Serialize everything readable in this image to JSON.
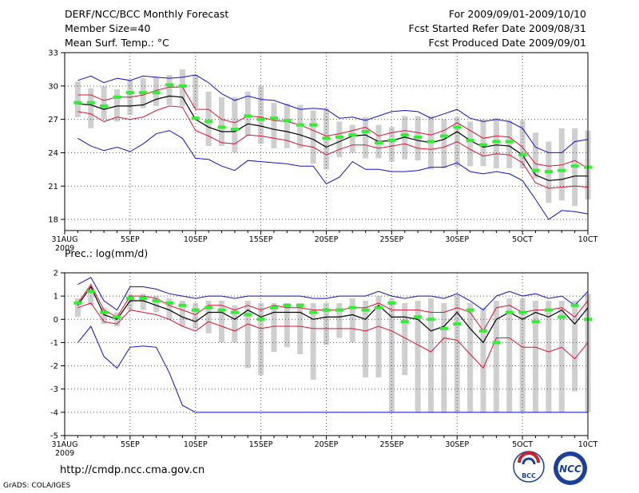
{
  "header": {
    "title": "DERF/NCC/BCC Monthly Forecast",
    "member_size": "Member Size=40",
    "variable_temp": "Mean Surf. Temp.: °C",
    "forecast_for": "For 2009/09/01-2009/10/10",
    "fcst_started": "Fcst Started Refer Date 2009/08/31",
    "fcst_produced": "Fcst Produced Date 2009/09/01"
  },
  "footer": {
    "url": "http://cmdp.ncc.cma.gov.cn",
    "credit": "GrADS: COLA/IGES",
    "logo_bcc_text": "BCC",
    "logo_ncc_text": "NCC"
  },
  "colors": {
    "envelope": "#1010d0",
    "spread": "#e01030",
    "mean": "#000000",
    "median": "#33ee33",
    "box": "#cfcfcf",
    "grid": "#555555"
  },
  "chart_data": [
    {
      "type": "line",
      "name": "temperature",
      "title": "Mean Surf. Temp.: °C",
      "x_tick_labels": [
        "31AUG",
        "5SEP",
        "10SEP",
        "15SEP",
        "20SEP",
        "25SEP",
        "30SEP",
        "5OCT",
        "10CT"
      ],
      "x_tick_days": [
        0,
        5,
        10,
        15,
        20,
        25,
        30,
        35,
        40
      ],
      "x_year_label": "2009",
      "ylim": [
        17,
        33
      ],
      "y_ticks": [
        18,
        21,
        24,
        27,
        30,
        33
      ],
      "grid": true,
      "days": [
        1,
        2,
        3,
        4,
        5,
        6,
        7,
        8,
        9,
        10,
        11,
        12,
        13,
        14,
        15,
        16,
        17,
        18,
        19,
        20,
        21,
        22,
        23,
        24,
        25,
        26,
        27,
        28,
        29,
        30,
        31,
        32,
        33,
        34,
        35,
        36,
        37,
        38,
        39,
        40
      ],
      "box_low": [
        27.2,
        26.2,
        27.0,
        26.8,
        27.4,
        28.0,
        28.2,
        28.3,
        28.2,
        28.0,
        24.6,
        24.6,
        24.0,
        25.5,
        24.8,
        24.4,
        24.4,
        24.4,
        23.0,
        22.5,
        23.6,
        24.0,
        23.5,
        23.5,
        23.2,
        23.4,
        23.3,
        22.5,
        22.6,
        22.7,
        22.8,
        22.8,
        22.6,
        22.6,
        22.6,
        21.7,
        19.5,
        19.7,
        19.2,
        19.8
      ],
      "box_high": [
        30.4,
        29.8,
        30.0,
        29.7,
        30.5,
        30.7,
        30.8,
        31.0,
        31.5,
        31.0,
        29.5,
        29.0,
        29.0,
        29.5,
        30.0,
        28.5,
        28.4,
        28.3,
        27.8,
        28.0,
        26.8,
        26.5,
        27.2,
        26.5,
        26.3,
        27.3,
        27.3,
        27.3,
        27.0,
        27.2,
        26.8,
        27.0,
        27.1,
        26.9,
        26.9,
        25.8,
        25.0,
        26.2,
        26.2,
        26.0
      ],
      "env_high": [
        30.5,
        30.9,
        30.3,
        30.7,
        30.5,
        30.9,
        30.8,
        30.7,
        30.8,
        31.0,
        30.3,
        29.3,
        28.7,
        29.1,
        28.8,
        28.7,
        28.3,
        27.9,
        28.0,
        27.9,
        27.1,
        27.2,
        26.9,
        27.3,
        27.7,
        27.8,
        27.7,
        27.1,
        27.5,
        27.9,
        27.1,
        26.8,
        27.0,
        26.8,
        26.2,
        24.5,
        24.0,
        24.0,
        25.0,
        25.2
      ],
      "env_low": [
        25.3,
        24.6,
        24.2,
        24.5,
        24.1,
        24.8,
        25.7,
        26.0,
        25.3,
        23.5,
        23.4,
        22.8,
        22.4,
        23.3,
        23.2,
        23.1,
        23.0,
        22.8,
        22.8,
        21.2,
        21.8,
        23.2,
        22.5,
        22.5,
        22.3,
        22.3,
        22.4,
        22.7,
        22.7,
        23.1,
        22.3,
        22.1,
        22.3,
        22.1,
        21.5,
        19.8,
        18.0,
        18.8,
        18.7,
        18.5
      ],
      "spread_high": [
        29.2,
        29.2,
        28.7,
        29.0,
        29.0,
        29.2,
        29.6,
        29.9,
        29.9,
        27.9,
        27.9,
        27.0,
        26.7,
        27.3,
        27.2,
        26.9,
        26.8,
        26.5,
        26.0,
        25.5,
        25.7,
        26.0,
        26.3,
        25.5,
        25.8,
        26.0,
        25.8,
        25.6,
        26.0,
        26.7,
        26.0,
        25.3,
        25.5,
        25.4,
        24.5,
        23.0,
        22.8,
        22.9,
        23.3,
        22.6
      ],
      "spread_low": [
        27.7,
        27.5,
        26.8,
        27.2,
        27.0,
        27.2,
        27.8,
        28.2,
        28.1,
        26.0,
        25.5,
        24.9,
        24.8,
        25.6,
        25.5,
        25.3,
        25.1,
        24.7,
        24.5,
        23.8,
        24.3,
        24.7,
        24.7,
        24.4,
        24.6,
        24.8,
        24.4,
        24.3,
        24.5,
        25.0,
        24.3,
        23.7,
        23.9,
        23.8,
        23.1,
        21.3,
        20.8,
        20.9,
        21.0,
        20.9
      ],
      "mean": [
        28.4,
        28.3,
        27.9,
        28.2,
        28.2,
        28.3,
        28.8,
        29.1,
        29.0,
        27.0,
        26.3,
        25.9,
        25.9,
        26.6,
        26.4,
        26.1,
        25.9,
        25.6,
        25.2,
        24.5,
        25.0,
        25.5,
        25.6,
        25.0,
        25.1,
        25.4,
        25.1,
        24.9,
        25.2,
        25.9,
        25.1,
        24.5,
        24.7,
        24.6,
        23.8,
        22.0,
        21.5,
        21.6,
        21.9,
        21.9
      ],
      "median": [
        28.5,
        28.5,
        28.2,
        29.0,
        29.4,
        29.4,
        29.4,
        30.1,
        30.0,
        27.1,
        26.8,
        26.3,
        26.1,
        27.3,
        27.0,
        27.1,
        26.9,
        26.5,
        26.5,
        25.3,
        25.4,
        25.6,
        25.9,
        24.9,
        25.1,
        25.6,
        25.4,
        25.0,
        25.5,
        26.3,
        25.1,
        24.7,
        25.0,
        25.0,
        23.8,
        22.4,
        22.3,
        22.4,
        22.8,
        22.7
      ]
    },
    {
      "type": "line",
      "name": "precipitation",
      "title": "Prec.: log(mm/d)",
      "x_tick_labels": [
        "31AUG",
        "5SEP",
        "10SEP",
        "15SEP",
        "20SEP",
        "25SEP",
        "30SEP",
        "5OCT",
        "10CT"
      ],
      "x_tick_days": [
        0,
        5,
        10,
        15,
        20,
        25,
        30,
        35,
        40
      ],
      "x_year_label": "2009",
      "ylim": [
        -5,
        2
      ],
      "y_ticks": [
        -5,
        -4,
        -3,
        -2,
        -1,
        0,
        1,
        2
      ],
      "grid": true,
      "days": [
        1,
        2,
        3,
        4,
        5,
        6,
        7,
        8,
        9,
        10,
        11,
        12,
        13,
        14,
        15,
        16,
        17,
        18,
        19,
        20,
        21,
        22,
        23,
        24,
        25,
        26,
        27,
        28,
        29,
        30,
        31,
        32,
        33,
        34,
        35,
        36,
        37,
        38,
        39,
        40
      ],
      "box_low": [
        0.1,
        0.6,
        -0.2,
        -0.3,
        0.4,
        0.4,
        0.3,
        0.0,
        -0.3,
        -0.4,
        -0.6,
        -1.0,
        -1.0,
        -2.1,
        -2.4,
        -1.4,
        -1.2,
        -1.5,
        -2.6,
        -1.1,
        -0.8,
        -1.0,
        -2.5,
        -2.5,
        -4.0,
        -2.4,
        -4.0,
        -4.0,
        -4.0,
        -4.0,
        -4.0,
        -4.0,
        -4.0,
        -4.0,
        -4.0,
        -4.0,
        -4.0,
        -4.0,
        -3.1,
        -4.0
      ],
      "box_high": [
        0.9,
        1.3,
        0.5,
        0.3,
        1.1,
        1.1,
        1.0,
        0.9,
        0.8,
        0.7,
        0.8,
        0.8,
        0.6,
        0.8,
        0.7,
        0.7,
        0.7,
        0.7,
        0.7,
        0.7,
        0.7,
        0.9,
        0.8,
        1.0,
        0.9,
        0.7,
        0.8,
        0.9,
        0.7,
        1.0,
        0.7,
        0.5,
        0.8,
        0.9,
        0.9,
        0.8,
        0.8,
        0.8,
        0.8,
        1.1
      ],
      "env_high": [
        1.5,
        1.8,
        0.8,
        0.4,
        1.4,
        1.4,
        1.3,
        1.1,
        1.0,
        0.9,
        1.0,
        1.0,
        0.9,
        1.0,
        1.0,
        1.0,
        1.0,
        1.0,
        0.9,
        0.9,
        1.0,
        1.0,
        1.0,
        1.2,
        1.0,
        0.9,
        1.0,
        1.0,
        0.9,
        1.1,
        0.8,
        0.4,
        1.0,
        1.2,
        1.0,
        1.1,
        0.9,
        1.0,
        0.6,
        1.2
      ],
      "env_low": [
        -1.0,
        -0.3,
        -1.6,
        -2.1,
        -1.2,
        -1.15,
        -1.2,
        -2.3,
        -3.7,
        -4.0,
        -4.0,
        -4.0,
        -4.0,
        -4.0,
        -4.0,
        -4.0,
        -4.0,
        -4.0,
        -4.0,
        -4.0,
        -4.0,
        -4.0,
        -4.0,
        -4.0,
        -4.0,
        -4.0,
        -4.0,
        -4.0,
        -4.0,
        -4.0,
        -4.0,
        -4.0,
        -4.0,
        -4.0,
        -4.0,
        -4.0,
        -4.0,
        -4.0,
        -4.0,
        -4.0
      ],
      "spread_high": [
        0.7,
        1.5,
        0.4,
        0.1,
        1.0,
        1.0,
        0.9,
        0.6,
        0.4,
        0.2,
        0.6,
        0.6,
        0.4,
        0.6,
        0.4,
        0.6,
        0.5,
        0.5,
        0.4,
        0.4,
        0.4,
        0.5,
        0.5,
        0.7,
        0.4,
        0.4,
        0.4,
        0.3,
        0.3,
        0.5,
        0.3,
        -0.5,
        0.5,
        0.6,
        0.3,
        0.4,
        0.4,
        0.5,
        0.1,
        0.8
      ],
      "spread_low": [
        0.5,
        0.7,
        -0.1,
        -0.2,
        0.4,
        0.3,
        0.2,
        0.0,
        -0.3,
        -0.5,
        -0.1,
        -0.3,
        -0.5,
        -0.2,
        -0.4,
        -0.3,
        -0.3,
        -0.3,
        -0.4,
        -0.4,
        -0.4,
        -0.4,
        -0.5,
        -0.3,
        -0.5,
        -0.8,
        -1.1,
        -1.4,
        -0.8,
        -0.9,
        -1.5,
        -2.1,
        -0.8,
        -0.8,
        -1.2,
        -1.2,
        -1.4,
        -1.2,
        -1.7,
        -1.0
      ],
      "mean": [
        0.6,
        1.4,
        0.2,
        0.0,
        0.8,
        0.8,
        0.6,
        0.4,
        0.1,
        -0.1,
        0.3,
        0.3,
        0.0,
        0.4,
        0.1,
        0.3,
        0.3,
        0.3,
        0.0,
        0.1,
        0.1,
        0.2,
        0.0,
        0.6,
        0.1,
        0.1,
        0.0,
        -0.5,
        -0.3,
        0.3,
        -0.4,
        -1.0,
        0.0,
        0.3,
        0.0,
        0.3,
        0.1,
        0.4,
        -0.2,
        0.5
      ],
      "median": [
        0.7,
        1.2,
        0.3,
        0.1,
        0.9,
        0.9,
        0.8,
        0.7,
        0.6,
        0.4,
        0.5,
        0.4,
        0.3,
        0.2,
        0.0,
        0.5,
        0.6,
        0.6,
        0.3,
        0.4,
        0.4,
        0.5,
        0.4,
        0.5,
        0.7,
        -0.1,
        0.1,
        0.0,
        -0.4,
        -0.2,
        0.4,
        -0.5,
        -1.0,
        0.3,
        0.3,
        -0.1,
        0.4,
        0.1,
        0.6,
        0.0
      ]
    }
  ]
}
